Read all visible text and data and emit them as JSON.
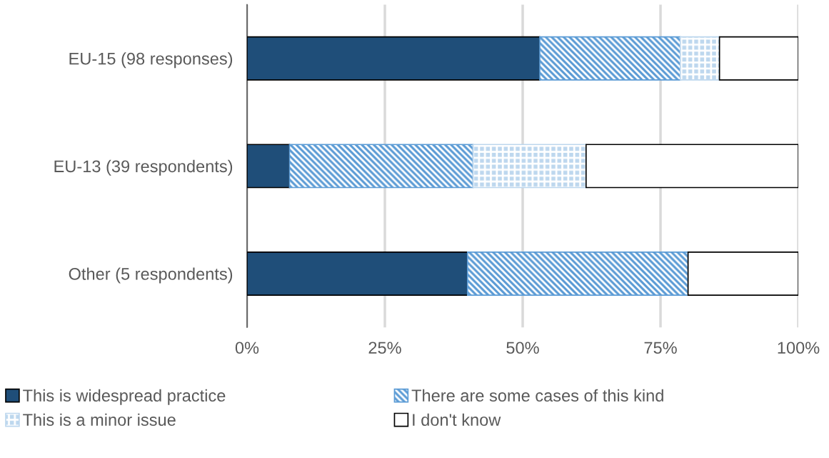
{
  "chart_data": {
    "type": "bar",
    "orientation": "horizontal",
    "stacked": true,
    "categories": [
      "EU-15 (98 responses)",
      "EU-13 (39 respondents)",
      "Other (5 respondents)"
    ],
    "series": [
      {
        "name": "This is widespread practice",
        "color": "#1f4e79",
        "values": [
          53.1,
          7.7,
          40
        ]
      },
      {
        "name": "There are some cases of this kind",
        "color": "#5b9bd5",
        "values": [
          25.5,
          33.3,
          40
        ]
      },
      {
        "name": "This is a minor issue",
        "color": "#bdd7ee",
        "values": [
          7.1,
          20.5,
          0
        ]
      },
      {
        "name": "I don't know",
        "color": "#ffffff",
        "values": [
          14.3,
          38.5,
          20
        ]
      }
    ],
    "xlim": [
      0,
      100
    ],
    "xticks": [
      {
        "value": 0,
        "label": "0%"
      },
      {
        "value": 25,
        "label": "25%"
      },
      {
        "value": 50,
        "label": "50%"
      },
      {
        "value": 75,
        "label": "75%"
      },
      {
        "value": 100,
        "label": "100%"
      }
    ],
    "grid": "x",
    "legend": "bottom"
  }
}
